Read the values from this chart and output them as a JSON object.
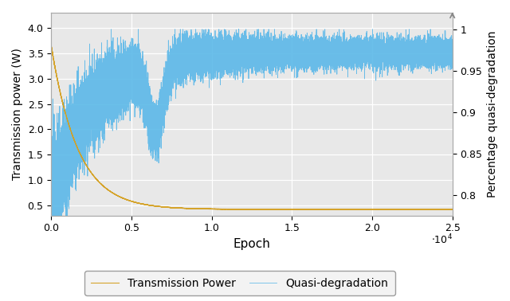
{
  "xlabel": "Epoch",
  "ylabel_left": "Transmission power (W)",
  "ylabel_right": "Percentage quasi-degradation",
  "xlim": [
    0,
    25000
  ],
  "xticks": [
    0,
    5000,
    10000,
    15000,
    20000,
    25000
  ],
  "xtick_labels": [
    "0.0",
    "0.5",
    "1.0",
    "1.5",
    "2.0",
    "2.5"
  ],
  "xscale_label": "$\\cdot 10^4$",
  "ylim_left": [
    0.3,
    4.3
  ],
  "yticks_left": [
    0.5,
    1.0,
    1.5,
    2.0,
    2.5,
    3.0,
    3.5,
    4.0
  ],
  "ytick_labels_left": [
    "0.5",
    "1.0",
    "1.5",
    "2.0",
    "2.5",
    "3.0",
    "3.5",
    "4.0"
  ],
  "ylim_right": [
    0.775,
    1.02
  ],
  "yticks_right": [
    0.8,
    0.85,
    0.9,
    0.95,
    1.0
  ],
  "ytick_labels_right": [
    "0.8",
    "0.85",
    "0.9",
    "0.95",
    "1"
  ],
  "color_power": "#D4A020",
  "color_quasi": "#5BB8E8",
  "legend_labels": [
    "Transmission Power",
    "Quasi-degradation"
  ],
  "n_points": 25000,
  "power_init": 3.65,
  "power_final": 0.42,
  "power_decay_fast": 0.0006,
  "quasi_init": 0.79,
  "quasi_final": 0.972,
  "quasi_growth": 0.0004,
  "background_color": "#e8e8e8",
  "grid_color": "#ffffff",
  "figsize": [
    6.4,
    3.78
  ],
  "dpi": 100
}
